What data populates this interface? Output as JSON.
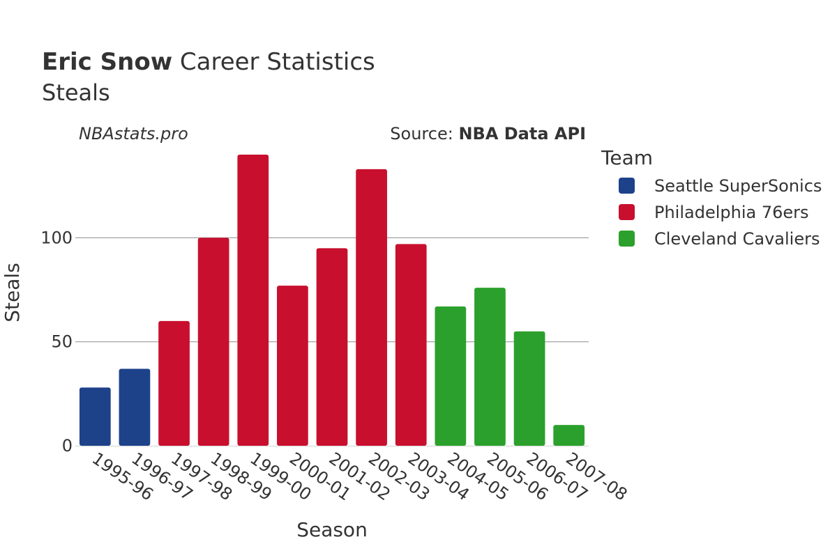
{
  "chart_data": {
    "type": "bar",
    "title": {
      "bold": "Eric Snow",
      "rest": " Career Statistics"
    },
    "subtitle": "Steals",
    "watermark": "NBAstats.pro",
    "source": {
      "prefix": "Source: ",
      "name": "NBA Data API"
    },
    "xlabel": "Season",
    "ylabel": "Steals",
    "ylim": [
      0,
      140
    ],
    "yticks": [
      0,
      50,
      100
    ],
    "grid": true,
    "legend": {
      "title": "Team",
      "position": "right"
    },
    "categories": [
      "1995-96",
      "1996-97",
      "1997-98",
      "1998-99",
      "1999-00",
      "2000-01",
      "2001-02",
      "2002-03",
      "2003-04",
      "2004-05",
      "2005-06",
      "2006-07",
      "2007-08"
    ],
    "series": [
      {
        "name": "Seattle SuperSonics",
        "color": "#1d428a",
        "values": [
          28,
          37,
          null,
          null,
          null,
          null,
          null,
          null,
          null,
          null,
          null,
          null,
          null
        ]
      },
      {
        "name": "Philadelphia 76ers",
        "color": "#c8102e",
        "values": [
          null,
          null,
          60,
          100,
          140,
          77,
          95,
          133,
          97,
          null,
          null,
          null,
          null
        ]
      },
      {
        "name": "Cleveland Cavaliers",
        "color": "#2ca02c",
        "values": [
          null,
          null,
          null,
          null,
          null,
          null,
          null,
          null,
          null,
          67,
          76,
          55,
          10
        ]
      }
    ]
  }
}
